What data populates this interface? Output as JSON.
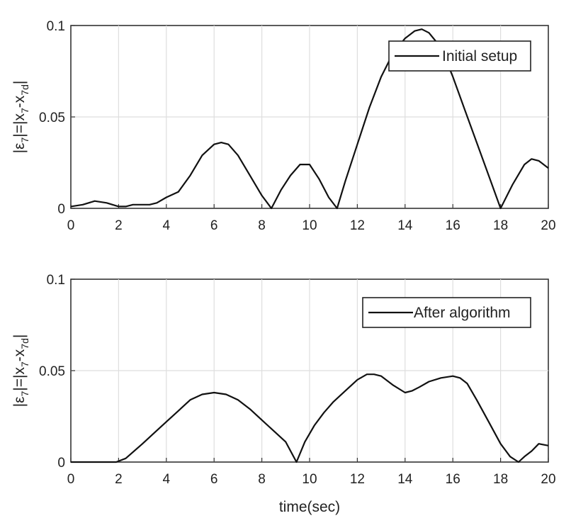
{
  "chart_data": [
    {
      "type": "line",
      "ylabel_main": "|ε",
      "ylabel_sub1": "7",
      "ylabel_mid": "|=|x",
      "ylabel_sub2": "7",
      "ylabel_mid2": "-x",
      "ylabel_sub3": "7d",
      "ylabel_end": "|",
      "xlabel": "",
      "xlim": [
        0,
        20
      ],
      "ylim": [
        0,
        0.1
      ],
      "xticks": [
        "0",
        "2",
        "4",
        "6",
        "8",
        "10",
        "12",
        "14",
        "16",
        "18",
        "20"
      ],
      "yticks": [
        "0",
        "0.05",
        "0.1"
      ],
      "grid": true,
      "legend_position": "top-right",
      "series": [
        {
          "name": "Initial setup",
          "color": "#111111",
          "x": [
            0,
            0.5,
            1,
            1.5,
            2,
            2.3,
            2.6,
            3,
            3.3,
            3.6,
            4,
            4.5,
            5,
            5.5,
            6,
            6.3,
            6.6,
            7,
            7.5,
            8,
            8.4,
            8.8,
            9.2,
            9.6,
            10,
            10.4,
            10.8,
            11.15,
            11.5,
            12,
            12.5,
            13,
            13.5,
            14,
            14.4,
            14.7,
            15,
            15.5,
            16,
            16.5,
            17,
            17.5,
            18,
            18.5,
            19,
            19.3,
            19.6,
            20
          ],
          "y": [
            0.001,
            0.002,
            0.004,
            0.003,
            0.001,
            0.001,
            0.002,
            0.002,
            0.002,
            0.003,
            0.006,
            0.009,
            0.018,
            0.029,
            0.035,
            0.036,
            0.035,
            0.029,
            0.018,
            0.007,
            0.0,
            0.01,
            0.018,
            0.024,
            0.024,
            0.016,
            0.006,
            0.0,
            0.015,
            0.035,
            0.055,
            0.072,
            0.085,
            0.093,
            0.097,
            0.098,
            0.096,
            0.088,
            0.072,
            0.054,
            0.036,
            0.018,
            0.0,
            0.013,
            0.024,
            0.027,
            0.026,
            0.022
          ]
        }
      ]
    },
    {
      "type": "line",
      "ylabel_main": "|ε",
      "ylabel_sub1": "7",
      "ylabel_mid": "|=|x",
      "ylabel_sub2": "7",
      "ylabel_mid2": "-x",
      "ylabel_sub3": "7d",
      "ylabel_end": "|",
      "xlabel": "time(sec)",
      "xlim": [
        0,
        20
      ],
      "ylim": [
        0,
        0.1
      ],
      "xticks": [
        "0",
        "2",
        "4",
        "6",
        "8",
        "10",
        "12",
        "14",
        "16",
        "18",
        "20"
      ],
      "yticks": [
        "0",
        "0.05",
        "0.1"
      ],
      "grid": true,
      "legend_position": "top-right",
      "series": [
        {
          "name": "After algorithm",
          "color": "#111111",
          "x": [
            0,
            0.5,
            1,
            1.5,
            1.9,
            2.3,
            3,
            3.5,
            4,
            4.5,
            5,
            5.5,
            6,
            6.5,
            7,
            7.5,
            8,
            8.5,
            9,
            9.45,
            9.8,
            10.2,
            10.6,
            11,
            11.5,
            12,
            12.4,
            12.7,
            13,
            13.5,
            14,
            14.3,
            14.6,
            15,
            15.5,
            16,
            16.3,
            16.6,
            17,
            17.5,
            18,
            18.4,
            18.75,
            19,
            19.3,
            19.6,
            20
          ],
          "y": [
            0.0,
            0.0,
            0.0,
            0.0,
            0.0,
            0.002,
            0.01,
            0.016,
            0.022,
            0.028,
            0.034,
            0.037,
            0.038,
            0.037,
            0.034,
            0.029,
            0.023,
            0.017,
            0.011,
            0.0,
            0.011,
            0.02,
            0.027,
            0.033,
            0.039,
            0.045,
            0.048,
            0.048,
            0.047,
            0.042,
            0.038,
            0.039,
            0.041,
            0.044,
            0.046,
            0.047,
            0.046,
            0.043,
            0.034,
            0.022,
            0.01,
            0.003,
            0.0,
            0.003,
            0.006,
            0.01,
            0.009
          ]
        }
      ]
    }
  ]
}
